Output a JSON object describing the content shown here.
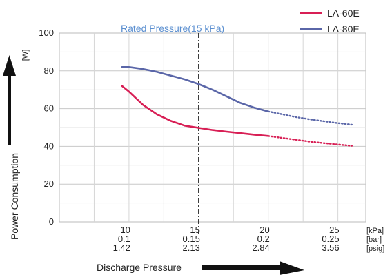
{
  "chart_data": {
    "type": "line",
    "ylabel": "Power Consumption",
    "yunit": "[W]",
    "xlabel": "Discharge Pressure",
    "ylim": [
      0,
      100
    ],
    "yticks": [
      "0",
      "20",
      "40",
      "60",
      "80",
      "100"
    ],
    "xlim": [
      5,
      27
    ],
    "xticks": [
      {
        "kpa": "10",
        "bar": "0.1",
        "psig": "1.42"
      },
      {
        "kpa": "15",
        "bar": "0.15",
        "psig": "2.13"
      },
      {
        "kpa": "20",
        "bar": "0.2",
        "psig": "2.84"
      },
      {
        "kpa": "25",
        "bar": "0.25",
        "psig": "3.56"
      }
    ],
    "xunits": [
      "[kPa]",
      "[bar]",
      "[psig]"
    ],
    "annotation": {
      "label": "Rated Pressure(15 kPa)",
      "x": 15,
      "color": "#5b8fd0"
    },
    "grid": true,
    "legend_position": "top-right",
    "series": [
      {
        "name": "LA-60E",
        "color": "#d81f55",
        "solid": [
          [
            9.5,
            72
          ],
          [
            10,
            69
          ],
          [
            11,
            62
          ],
          [
            12,
            57
          ],
          [
            13,
            53.5
          ],
          [
            14,
            51
          ],
          [
            15,
            49.8
          ],
          [
            16,
            48.7
          ],
          [
            17,
            47.8
          ],
          [
            18,
            47
          ],
          [
            19,
            46.2
          ],
          [
            20,
            45.5
          ]
        ],
        "dotted": [
          [
            20,
            45.5
          ],
          [
            21,
            44.5
          ],
          [
            22,
            43.5
          ],
          [
            23,
            42.5
          ],
          [
            24,
            41.7
          ],
          [
            25,
            41
          ],
          [
            26,
            40.3
          ]
        ]
      },
      {
        "name": "LA-80E",
        "color": "#5a66a8",
        "solid": [
          [
            9.5,
            82
          ],
          [
            10,
            82
          ],
          [
            11,
            81
          ],
          [
            12,
            79.5
          ],
          [
            13,
            77.5
          ],
          [
            14,
            75.5
          ],
          [
            15,
            73
          ],
          [
            16,
            70
          ],
          [
            17,
            66.5
          ],
          [
            18,
            63
          ],
          [
            19,
            60.5
          ],
          [
            20,
            58.5
          ]
        ],
        "dotted": [
          [
            20,
            58.5
          ],
          [
            21,
            57
          ],
          [
            22,
            55.5
          ],
          [
            23,
            54.3
          ],
          [
            24,
            53.3
          ],
          [
            25,
            52.3
          ],
          [
            26,
            51.5
          ]
        ]
      }
    ]
  }
}
